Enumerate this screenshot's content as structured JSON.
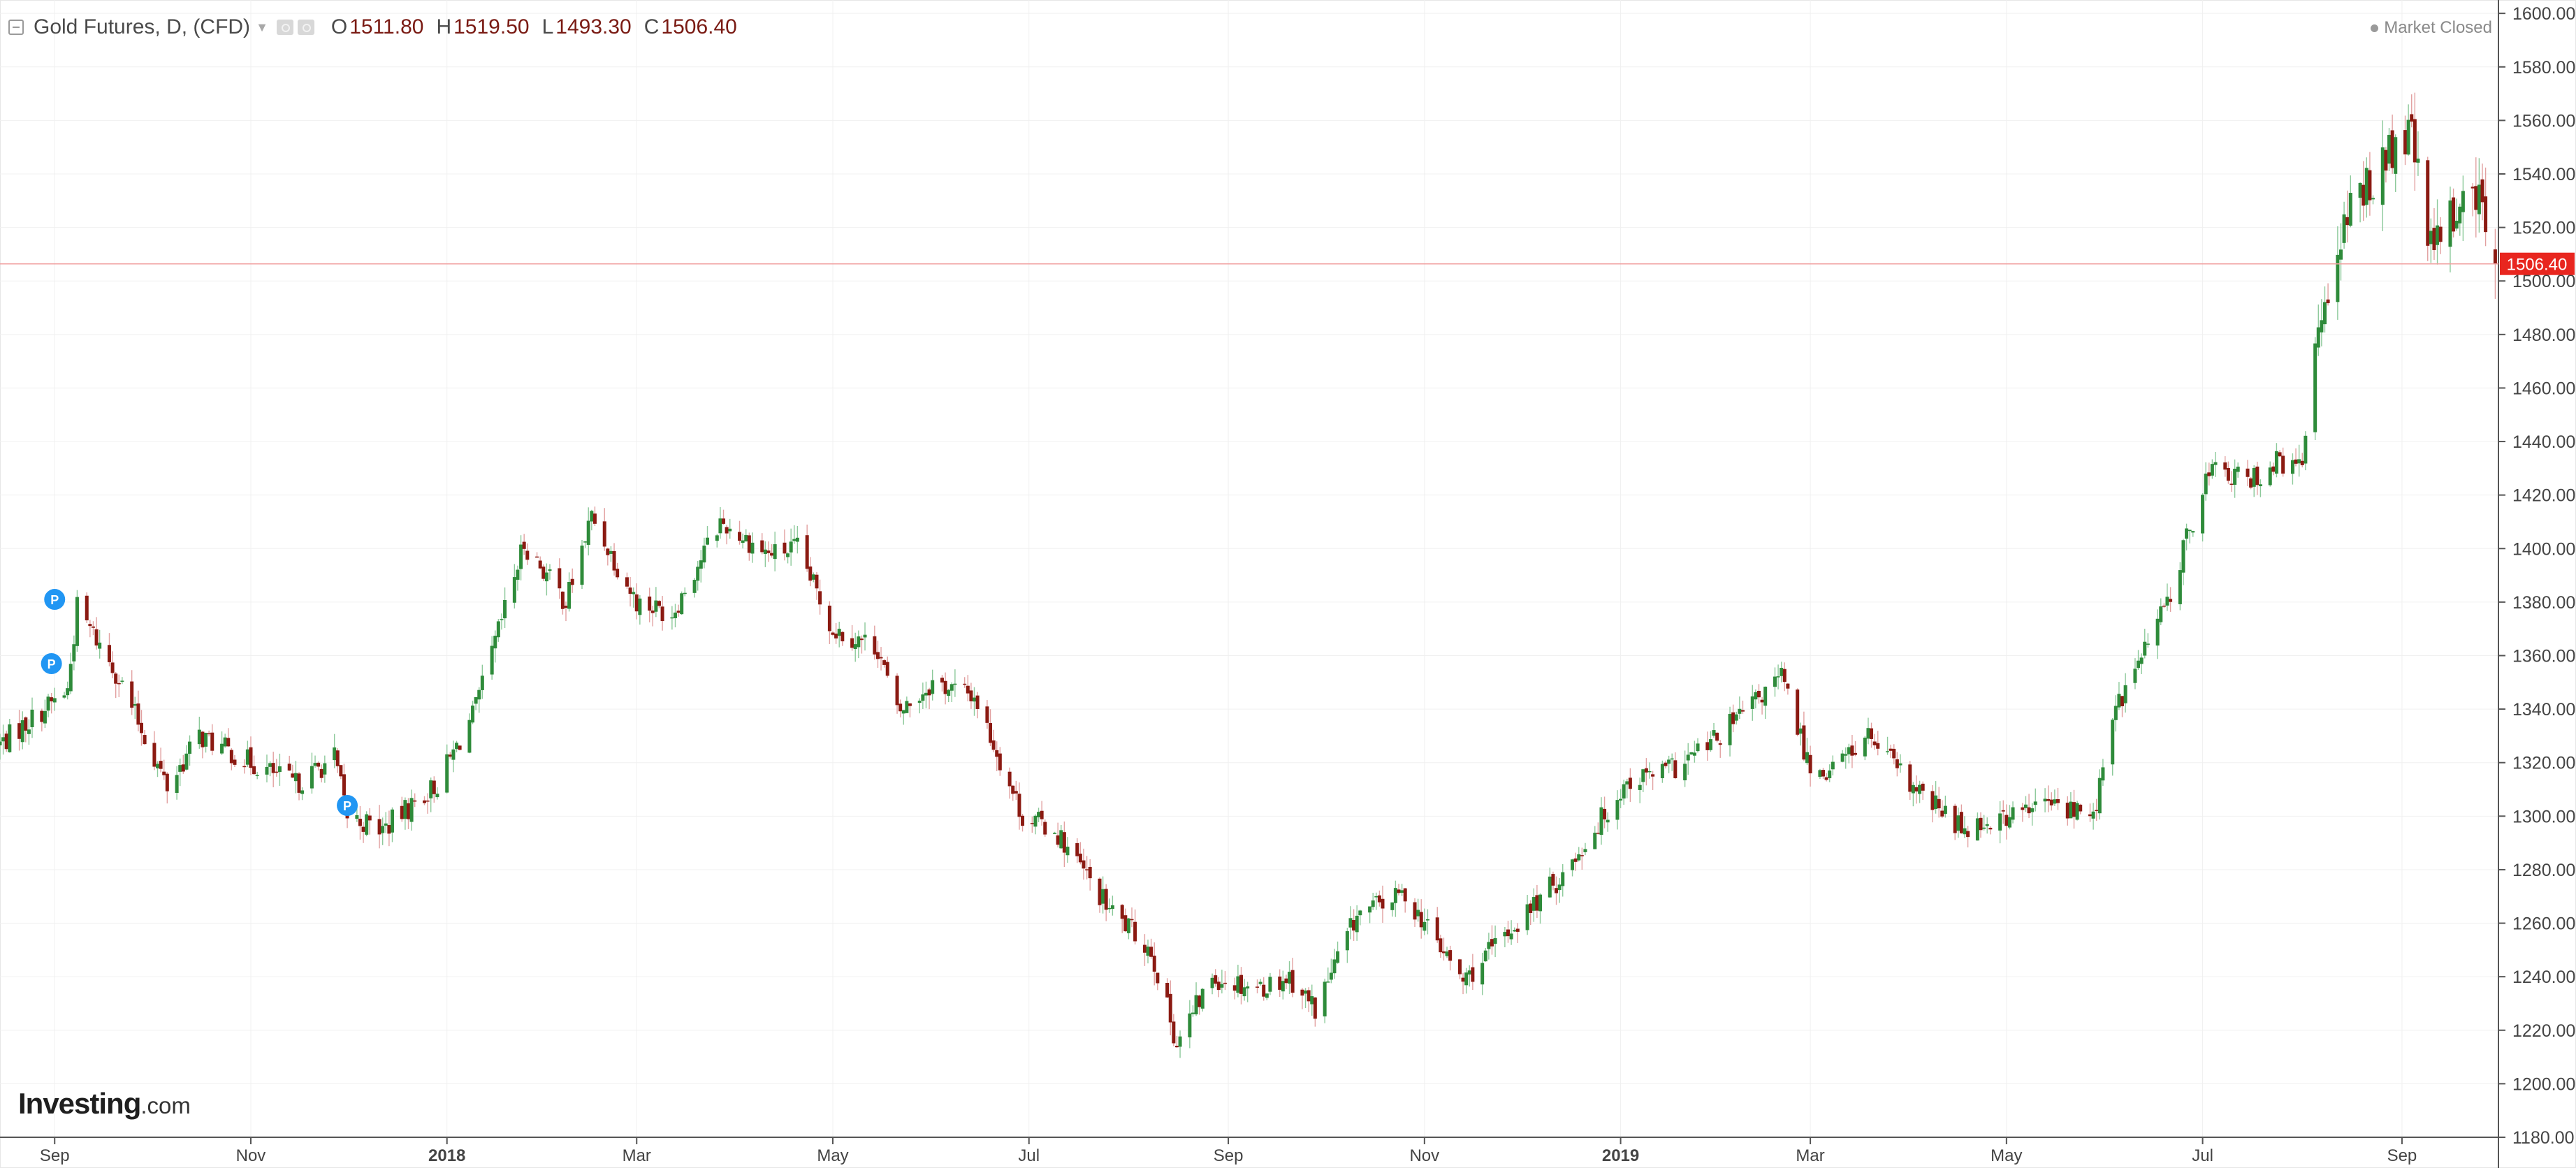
{
  "legend": {
    "symbol": "Gold Futures, D, (CFD)",
    "open_label": "O",
    "open": "1511.80",
    "high_label": "H",
    "high": "1519.50",
    "low_label": "L",
    "low": "1493.30",
    "close_label": "C",
    "close": "1506.40"
  },
  "status": "Market Closed",
  "brand": {
    "name": "Investing",
    "tld": ".com"
  },
  "colors": {
    "up": "#2e8b3a",
    "down": "#8b1a12",
    "price_line": "#f1a0a0",
    "price_badge": "#e8261f",
    "grid": "#f0f0f0",
    "pin": "#2196f3"
  },
  "chart_data": {
    "type": "candlestick",
    "title": "Gold Futures, D, (CFD)",
    "xlabel": "",
    "ylabel": "",
    "ylim": [
      1180,
      1605
    ],
    "y_ticks": [
      1180,
      1200,
      1220,
      1240,
      1260,
      1280,
      1300,
      1320,
      1340,
      1360,
      1380,
      1400,
      1420,
      1440,
      1460,
      1480,
      1500,
      1520,
      1540,
      1560,
      1580,
      1600
    ],
    "y_tick_labels": [
      "1180.00",
      "1200.00",
      "1220.00",
      "1240.00",
      "1260.00",
      "1280.00",
      "1300.00",
      "1320.00",
      "1340.00",
      "1360.00",
      "1380.00",
      "1400.00",
      "1420.00",
      "1440.00",
      "1460.00",
      "1480.00",
      "1500.00",
      "1520.00",
      "1540.00",
      "1560.00",
      "1580.00",
      "1600.00"
    ],
    "x_range": [
      "2017-08-15",
      "2019-10-01"
    ],
    "x_ticks": [
      {
        "date": "2017-09-01",
        "label": "Sep",
        "bold": false
      },
      {
        "date": "2017-11-01",
        "label": "Nov",
        "bold": false
      },
      {
        "date": "2018-01-01",
        "label": "2018",
        "bold": true
      },
      {
        "date": "2018-03-01",
        "label": "Mar",
        "bold": false
      },
      {
        "date": "2018-05-01",
        "label": "May",
        "bold": false
      },
      {
        "date": "2018-07-01",
        "label": "Jul",
        "bold": false
      },
      {
        "date": "2018-09-01",
        "label": "Sep",
        "bold": false
      },
      {
        "date": "2018-11-01",
        "label": "Nov",
        "bold": false
      },
      {
        "date": "2019-01-01",
        "label": "2019",
        "bold": true
      },
      {
        "date": "2019-03-01",
        "label": "Mar",
        "bold": false
      },
      {
        "date": "2019-05-01",
        "label": "May",
        "bold": false
      },
      {
        "date": "2019-07-01",
        "label": "Jul",
        "bold": false
      },
      {
        "date": "2019-09-01",
        "label": "Sep",
        "bold": false
      }
    ],
    "last_price": 1506.4,
    "last_price_label": "1506.40",
    "pins": [
      {
        "date": "2017-09-01",
        "price": 1381,
        "label": "P"
      },
      {
        "date": "2017-08-31",
        "price": 1357,
        "label": "P"
      },
      {
        "date": "2017-12-01",
        "price": 1304,
        "label": "P"
      }
    ],
    "anchors": [
      [
        "2017-08-15",
        1327
      ],
      [
        "2017-09-05",
        1347
      ],
      [
        "2017-09-08",
        1378
      ],
      [
        "2017-09-20",
        1354
      ],
      [
        "2017-10-06",
        1311
      ],
      [
        "2017-10-16",
        1330
      ],
      [
        "2017-11-01",
        1320
      ],
      [
        "2017-11-15",
        1312
      ],
      [
        "2017-11-27",
        1322
      ],
      [
        "2017-12-01",
        1300
      ],
      [
        "2017-12-12",
        1295
      ],
      [
        "2017-12-29",
        1312
      ],
      [
        "2018-01-10",
        1340
      ],
      [
        "2018-01-25",
        1402
      ],
      [
        "2018-02-07",
        1380
      ],
      [
        "2018-02-15",
        1412
      ],
      [
        "2018-03-01",
        1380
      ],
      [
        "2018-03-12",
        1376
      ],
      [
        "2018-03-27",
        1410
      ],
      [
        "2018-04-11",
        1398
      ],
      [
        "2018-04-20",
        1400
      ],
      [
        "2018-05-01",
        1370
      ],
      [
        "2018-05-15",
        1363
      ],
      [
        "2018-05-21",
        1338
      ],
      [
        "2018-06-01",
        1350
      ],
      [
        "2018-06-14",
        1345
      ],
      [
        "2018-06-29",
        1300
      ],
      [
        "2018-07-09",
        1295
      ],
      [
        "2018-07-26",
        1265
      ],
      [
        "2018-08-08",
        1250
      ],
      [
        "2018-08-16",
        1215
      ],
      [
        "2018-08-27",
        1240
      ],
      [
        "2018-09-11",
        1236
      ],
      [
        "2018-09-20",
        1240
      ],
      [
        "2018-09-28",
        1228
      ],
      [
        "2018-10-11",
        1263
      ],
      [
        "2018-10-26",
        1271
      ],
      [
        "2018-11-13",
        1238
      ],
      [
        "2018-11-28",
        1258
      ],
      [
        "2018-12-14",
        1278
      ],
      [
        "2019-01-03",
        1313
      ],
      [
        "2019-01-18",
        1318
      ],
      [
        "2019-01-30",
        1328
      ],
      [
        "2019-02-20",
        1352
      ],
      [
        "2019-03-01",
        1318
      ],
      [
        "2019-03-07",
        1317
      ],
      [
        "2019-03-19",
        1330
      ],
      [
        "2019-04-02",
        1310
      ],
      [
        "2019-04-17",
        1296
      ],
      [
        "2019-05-02",
        1300
      ],
      [
        "2019-05-14",
        1305
      ],
      [
        "2019-05-28",
        1300
      ],
      [
        "2019-06-04",
        1340
      ],
      [
        "2019-06-20",
        1380
      ],
      [
        "2019-07-03",
        1430
      ],
      [
        "2019-07-15",
        1425
      ],
      [
        "2019-07-24",
        1432
      ],
      [
        "2019-08-01",
        1430
      ],
      [
        "2019-08-05",
        1480
      ],
      [
        "2019-08-12",
        1515
      ],
      [
        "2019-08-23",
        1540
      ],
      [
        "2019-09-04",
        1555
      ],
      [
        "2019-09-10",
        1510
      ],
      [
        "2019-09-23",
        1538
      ],
      [
        "2019-09-30",
        1506
      ]
    ]
  }
}
